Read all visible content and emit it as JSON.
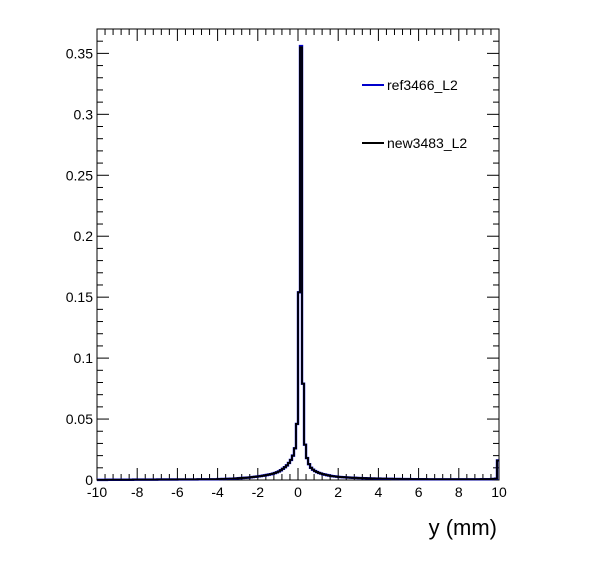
{
  "chart_data": {
    "type": "line",
    "title": "",
    "xlabel": "y (mm)",
    "ylabel": "",
    "xlim": [
      -10,
      10
    ],
    "ylim": [
      0,
      0.37
    ],
    "grid": false,
    "legend_position": "top-right",
    "x_ticks": [
      -10,
      -8,
      -6,
      -4,
      -2,
      0,
      2,
      4,
      6,
      8,
      10
    ],
    "x_tick_labels": [
      "-10",
      "-8",
      "-6",
      "-4",
      "-2",
      "0",
      "2",
      "4",
      "6",
      "8",
      "10"
    ],
    "y_ticks": [
      0,
      0.05,
      0.1,
      0.15,
      0.2,
      0.25,
      0.3,
      0.35
    ],
    "y_tick_labels": [
      "0",
      "0.05",
      "0.1",
      "0.15",
      "0.2",
      "0.25",
      "0.3",
      "0.35"
    ],
    "bins": {
      "min": -10,
      "max": 10,
      "count": 200
    },
    "series": [
      {
        "name": "ref3466_L2",
        "color": "#0000cc",
        "values": [
          0.0001,
          0.0001,
          0.0001,
          0.0001,
          0.0001,
          0.0002,
          0.0002,
          0.0002,
          0.0002,
          0.0002,
          0.0002,
          0.0002,
          0.0002,
          0.0002,
          0.0002,
          0.0002,
          0.0002,
          0.0002,
          0.0003,
          0.0003,
          0.0003,
          0.0003,
          0.0003,
          0.0003,
          0.0003,
          0.0003,
          0.0003,
          0.0003,
          0.0003,
          0.0003,
          0.0004,
          0.0004,
          0.0004,
          0.0004,
          0.0004,
          0.0004,
          0.0004,
          0.0004,
          0.0004,
          0.0004,
          0.0005,
          0.0005,
          0.0005,
          0.0005,
          0.0005,
          0.0005,
          0.0005,
          0.0005,
          0.0005,
          0.0005,
          0.0006,
          0.0006,
          0.0006,
          0.0006,
          0.0006,
          0.0006,
          0.0006,
          0.0006,
          0.0006,
          0.0006,
          0.0008,
          0.0008,
          0.0009,
          0.0009,
          0.001,
          0.001,
          0.0011,
          0.0011,
          0.0012,
          0.0013,
          0.0015,
          0.0016,
          0.0017,
          0.0018,
          0.0019,
          0.002,
          0.0022,
          0.0024,
          0.0026,
          0.0028,
          0.003,
          0.0032,
          0.0035,
          0.0038,
          0.0041,
          0.0044,
          0.0048,
          0.0052,
          0.0057,
          0.0063,
          0.007,
          0.008,
          0.0092,
          0.0105,
          0.012,
          0.014,
          0.0165,
          0.02,
          0.026,
          0.046,
          0.154,
          0.356,
          0.079,
          0.029,
          0.018,
          0.013,
          0.01,
          0.0085,
          0.0073,
          0.0065,
          0.0058,
          0.0053,
          0.0048,
          0.0044,
          0.004,
          0.0036,
          0.0033,
          0.0031,
          0.0029,
          0.0027,
          0.0025,
          0.0024,
          0.0023,
          0.0022,
          0.0021,
          0.002,
          0.0019,
          0.0018,
          0.0018,
          0.0017,
          0.0016,
          0.0016,
          0.0015,
          0.0015,
          0.0014,
          0.0014,
          0.0013,
          0.0013,
          0.0012,
          0.0012,
          0.0012,
          0.0011,
          0.0011,
          0.0011,
          0.001,
          0.001,
          0.001,
          0.0009,
          0.0009,
          0.0009,
          0.0009,
          0.0008,
          0.0008,
          0.0008,
          0.0008,
          0.0008,
          0.0007,
          0.0007,
          0.0007,
          0.0007,
          0.0007,
          0.0007,
          0.0007,
          0.0007,
          0.0006,
          0.0006,
          0.0006,
          0.0006,
          0.0006,
          0.0006,
          0.0006,
          0.0006,
          0.0006,
          0.0006,
          0.0006,
          0.0006,
          0.0006,
          0.0006,
          0.0006,
          0.0006,
          0.0006,
          0.0006,
          0.0006,
          0.0006,
          0.0006,
          0.0006,
          0.0006,
          0.0006,
          0.0006,
          0.0006,
          0.0006,
          0.0007,
          0.0007,
          0.0007,
          0.0007,
          0.0007,
          0.0008,
          0.0009,
          0.0011,
          0.016
        ]
      },
      {
        "name": "new3483_L2",
        "color": "#000000",
        "values": [
          0.0001,
          0.0001,
          0.0001,
          0.0001,
          0.0001,
          0.0002,
          0.0002,
          0.0002,
          0.0002,
          0.0002,
          0.0002,
          0.0002,
          0.0002,
          0.0002,
          0.0002,
          0.0002,
          0.0002,
          0.0002,
          0.0003,
          0.0003,
          0.0003,
          0.0003,
          0.0003,
          0.0003,
          0.0003,
          0.0003,
          0.0003,
          0.0003,
          0.0003,
          0.0003,
          0.0004,
          0.0004,
          0.0004,
          0.0004,
          0.0004,
          0.0004,
          0.0004,
          0.0004,
          0.0004,
          0.0004,
          0.0005,
          0.0005,
          0.0005,
          0.0005,
          0.0005,
          0.0005,
          0.0005,
          0.0005,
          0.0005,
          0.0005,
          0.0006,
          0.0006,
          0.0006,
          0.0006,
          0.0006,
          0.0006,
          0.0006,
          0.0006,
          0.0006,
          0.0006,
          0.0008,
          0.0008,
          0.0009,
          0.0009,
          0.001,
          0.001,
          0.0011,
          0.0011,
          0.0012,
          0.0013,
          0.0015,
          0.0016,
          0.0017,
          0.0018,
          0.0019,
          0.002,
          0.0022,
          0.0024,
          0.0026,
          0.0028,
          0.003,
          0.0032,
          0.0035,
          0.0038,
          0.0041,
          0.0044,
          0.0048,
          0.0052,
          0.0057,
          0.0063,
          0.007,
          0.008,
          0.0092,
          0.0105,
          0.012,
          0.014,
          0.0165,
          0.02,
          0.026,
          0.046,
          0.154,
          0.355,
          0.079,
          0.029,
          0.018,
          0.013,
          0.01,
          0.0085,
          0.0073,
          0.0065,
          0.0058,
          0.0053,
          0.0048,
          0.0044,
          0.004,
          0.0036,
          0.0033,
          0.0031,
          0.0029,
          0.0027,
          0.0025,
          0.0024,
          0.0023,
          0.0022,
          0.0021,
          0.002,
          0.0019,
          0.0018,
          0.0018,
          0.0017,
          0.0016,
          0.0016,
          0.0015,
          0.0015,
          0.0014,
          0.0014,
          0.0013,
          0.0013,
          0.0012,
          0.0012,
          0.0012,
          0.0011,
          0.0011,
          0.0011,
          0.001,
          0.001,
          0.001,
          0.0009,
          0.0009,
          0.0009,
          0.0009,
          0.0008,
          0.0008,
          0.0008,
          0.0008,
          0.0008,
          0.0007,
          0.0007,
          0.0007,
          0.0007,
          0.0007,
          0.0007,
          0.0007,
          0.0007,
          0.0006,
          0.0006,
          0.0006,
          0.0006,
          0.0006,
          0.0006,
          0.0006,
          0.0006,
          0.0006,
          0.0006,
          0.0006,
          0.0006,
          0.0006,
          0.0006,
          0.0006,
          0.0006,
          0.0006,
          0.0006,
          0.0006,
          0.0006,
          0.0006,
          0.0006,
          0.0006,
          0.0006,
          0.0006,
          0.0006,
          0.0006,
          0.0007,
          0.0007,
          0.0007,
          0.0007,
          0.0007,
          0.0008,
          0.0009,
          0.0011,
          0.016
        ]
      }
    ]
  }
}
